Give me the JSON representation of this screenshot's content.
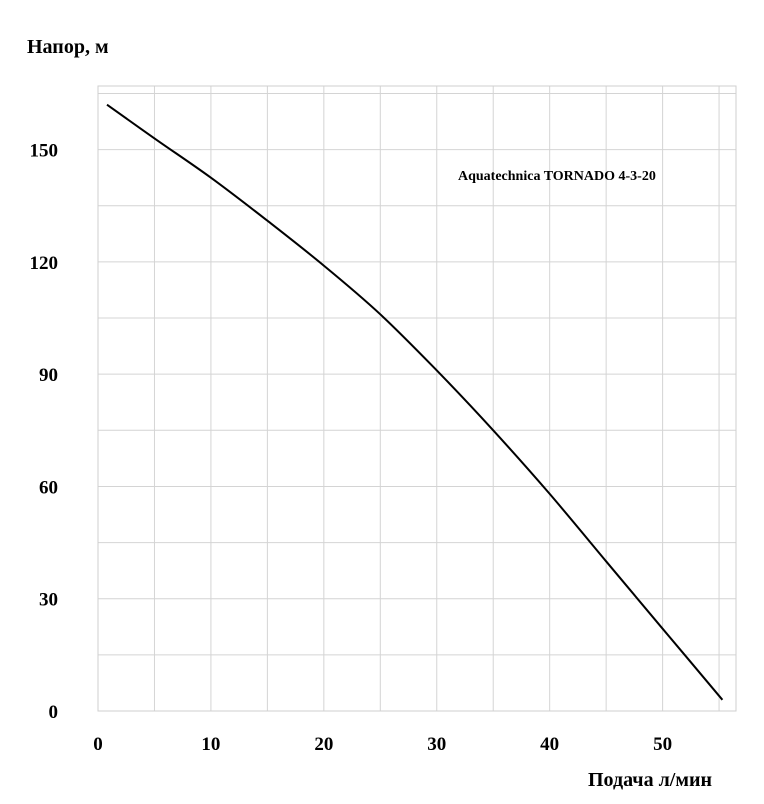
{
  "chart_data": {
    "type": "line",
    "title": "",
    "ylabel": "Напор, м",
    "xlabel": "Подача л/мин",
    "annotation": "Aquatechnica TORNADO 4-3-20",
    "xlim": [
      0,
      56.5
    ],
    "ylim": [
      0,
      167
    ],
    "x_ticks": [
      0,
      10,
      20,
      30,
      40,
      50
    ],
    "y_ticks": [
      0,
      30,
      60,
      90,
      120,
      150
    ],
    "x_grid_step": 5,
    "y_grid_step": 15,
    "grid": true,
    "legend": "none",
    "line_color": "#000000",
    "grid_color": "#d4d4d4",
    "series": [
      {
        "x": [
          0.8,
          5,
          10,
          15,
          20,
          25,
          30,
          35,
          40,
          45,
          50,
          55.3
        ],
        "y": [
          162,
          153,
          142.5,
          131,
          119,
          106,
          91,
          75,
          58,
          40,
          22,
          3
        ]
      }
    ]
  }
}
